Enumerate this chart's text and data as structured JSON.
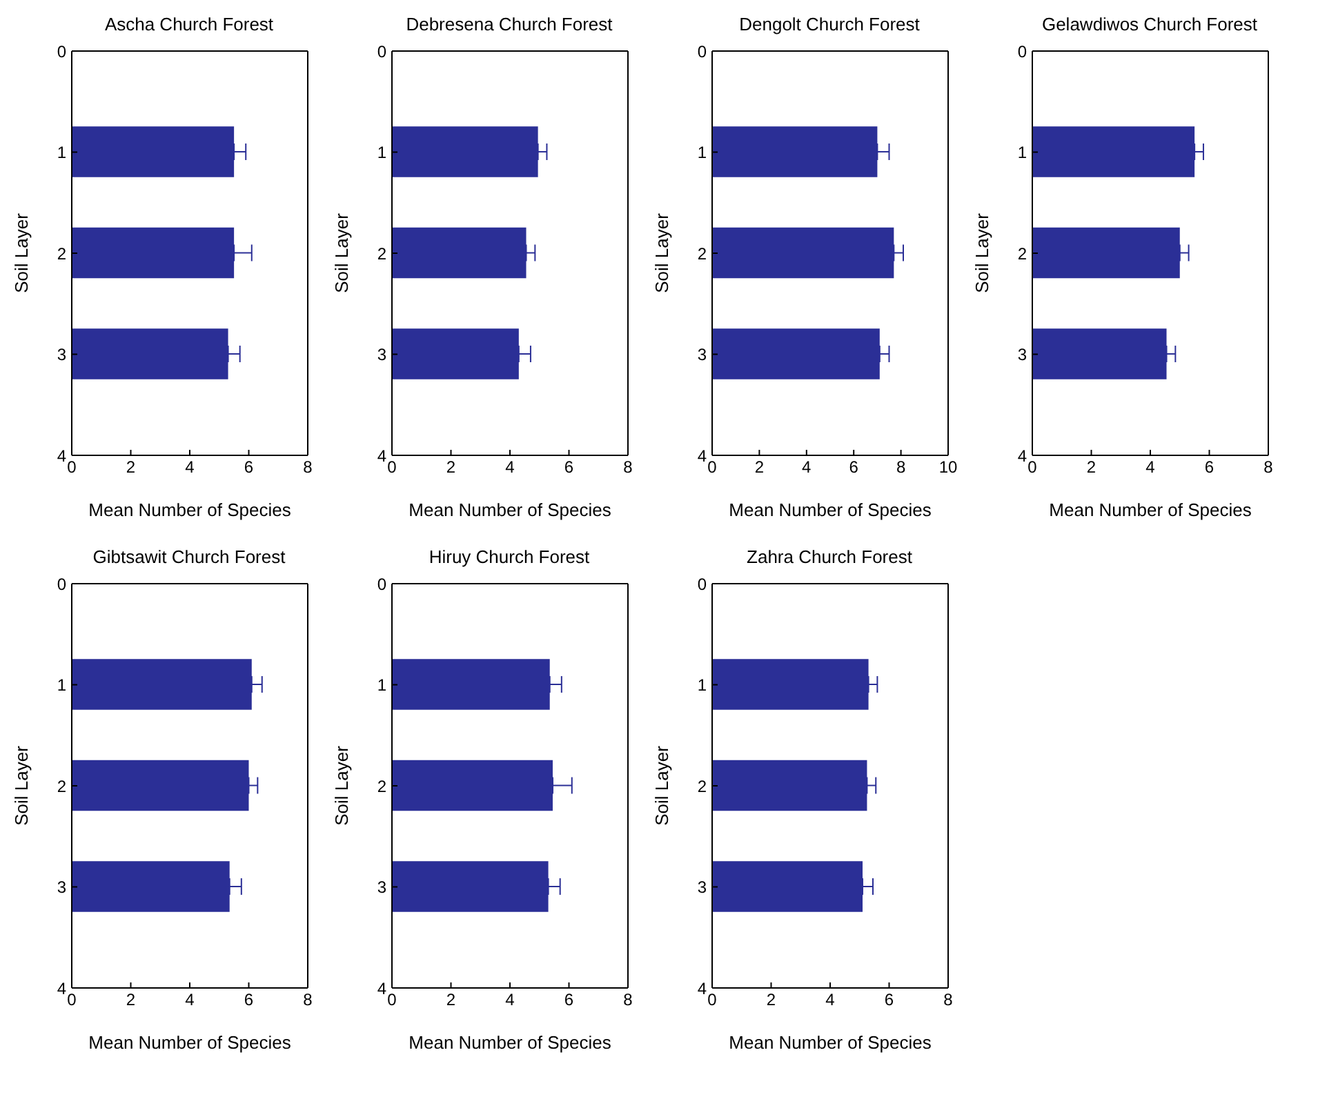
{
  "chart_data": [
    {
      "type": "bar",
      "orientation": "horizontal",
      "title": "Ascha Church Forest",
      "xlabel": "Mean Number of Species",
      "ylabel": "Soil Layer",
      "x": [
        1,
        2,
        3
      ],
      "values": [
        5.5,
        5.5,
        5.3
      ],
      "errors": [
        [
          5.5,
          5.9
        ],
        [
          5.5,
          6.1
        ],
        [
          5.3,
          5.7
        ]
      ],
      "color": "#2b2f96",
      "xlim": [
        0,
        8
      ],
      "xticks": [
        0,
        2,
        4,
        6,
        8
      ],
      "ylim": [
        4,
        0
      ],
      "yticks": [
        0,
        1,
        2,
        3,
        4
      ],
      "grid": false,
      "legend": false
    },
    {
      "type": "bar",
      "orientation": "horizontal",
      "title": "Debresena Church Forest",
      "xlabel": "Mean Number of Species",
      "ylabel": "Soil Layer",
      "x": [
        1,
        2,
        3
      ],
      "values": [
        4.95,
        4.55,
        4.3
      ],
      "errors": [
        [
          4.95,
          5.25
        ],
        [
          4.55,
          4.85
        ],
        [
          4.3,
          4.7
        ]
      ],
      "color": "#2b2f96",
      "xlim": [
        0,
        8
      ],
      "xticks": [
        0,
        2,
        4,
        6,
        8
      ],
      "ylim": [
        4,
        0
      ],
      "yticks": [
        0,
        1,
        2,
        3,
        4
      ],
      "grid": false,
      "legend": false
    },
    {
      "type": "bar",
      "orientation": "horizontal",
      "title": "Dengolt Church Forest",
      "xlabel": "Mean Number of Species",
      "ylabel": "Soil Layer",
      "x": [
        1,
        2,
        3
      ],
      "values": [
        7.0,
        7.7,
        7.1
      ],
      "errors": [
        [
          7.0,
          7.5
        ],
        [
          7.7,
          8.1
        ],
        [
          7.1,
          7.5
        ]
      ],
      "color": "#2b2f96",
      "xlim": [
        0,
        10
      ],
      "xticks": [
        0,
        2,
        4,
        6,
        8,
        10
      ],
      "ylim": [
        4,
        0
      ],
      "yticks": [
        0,
        1,
        2,
        3,
        4
      ],
      "grid": false,
      "legend": false
    },
    {
      "type": "bar",
      "orientation": "horizontal",
      "title": "Gelawdiwos Church Forest",
      "xlabel": "Mean Number of Species",
      "ylabel": "Soil Layer",
      "x": [
        1,
        2,
        3
      ],
      "values": [
        5.5,
        5.0,
        4.55
      ],
      "errors": [
        [
          5.5,
          5.8
        ],
        [
          5.0,
          5.3
        ],
        [
          4.55,
          4.85
        ]
      ],
      "color": "#2b2f96",
      "xlim": [
        0,
        8
      ],
      "xticks": [
        0,
        2,
        4,
        6,
        8
      ],
      "ylim": [
        4,
        0
      ],
      "yticks": [
        0,
        1,
        2,
        3,
        4
      ],
      "grid": false,
      "legend": false
    },
    {
      "type": "bar",
      "orientation": "horizontal",
      "title": "Gibtsawit Church Forest",
      "xlabel": "Mean Number of Species",
      "ylabel": "Soil Layer",
      "x": [
        1,
        2,
        3
      ],
      "values": [
        6.1,
        6.0,
        5.35
      ],
      "errors": [
        [
          6.1,
          6.45
        ],
        [
          6.0,
          6.3
        ],
        [
          5.35,
          5.75
        ]
      ],
      "color": "#2b2f96",
      "xlim": [
        0,
        8
      ],
      "xticks": [
        0,
        2,
        4,
        6,
        8
      ],
      "ylim": [
        4,
        0
      ],
      "yticks": [
        0,
        1,
        2,
        3,
        4
      ],
      "grid": false,
      "legend": false
    },
    {
      "type": "bar",
      "orientation": "horizontal",
      "title": "Hiruy Church Forest",
      "xlabel": "Mean Number of Species",
      "ylabel": "Soil Layer",
      "x": [
        1,
        2,
        3
      ],
      "values": [
        5.35,
        5.45,
        5.3
      ],
      "errors": [
        [
          5.35,
          5.75
        ],
        [
          5.45,
          6.1
        ],
        [
          5.3,
          5.7
        ]
      ],
      "color": "#2b2f96",
      "xlim": [
        0,
        8
      ],
      "xticks": [
        0,
        2,
        4,
        6,
        8
      ],
      "ylim": [
        4,
        0
      ],
      "yticks": [
        0,
        1,
        2,
        3,
        4
      ],
      "grid": false,
      "legend": false
    },
    {
      "type": "bar",
      "orientation": "horizontal",
      "title": "Zahra Church Forest",
      "xlabel": "Mean Number of Species",
      "ylabel": "Soil Layer",
      "x": [
        1,
        2,
        3
      ],
      "values": [
        5.3,
        5.25,
        5.1
      ],
      "errors": [
        [
          5.3,
          5.6
        ],
        [
          5.25,
          5.55
        ],
        [
          5.1,
          5.45
        ]
      ],
      "color": "#2b2f96",
      "xlim": [
        0,
        8
      ],
      "xticks": [
        0,
        2,
        4,
        6,
        8
      ],
      "ylim": [
        4,
        0
      ],
      "yticks": [
        0,
        1,
        2,
        3,
        4
      ],
      "grid": false,
      "legend": false
    }
  ]
}
